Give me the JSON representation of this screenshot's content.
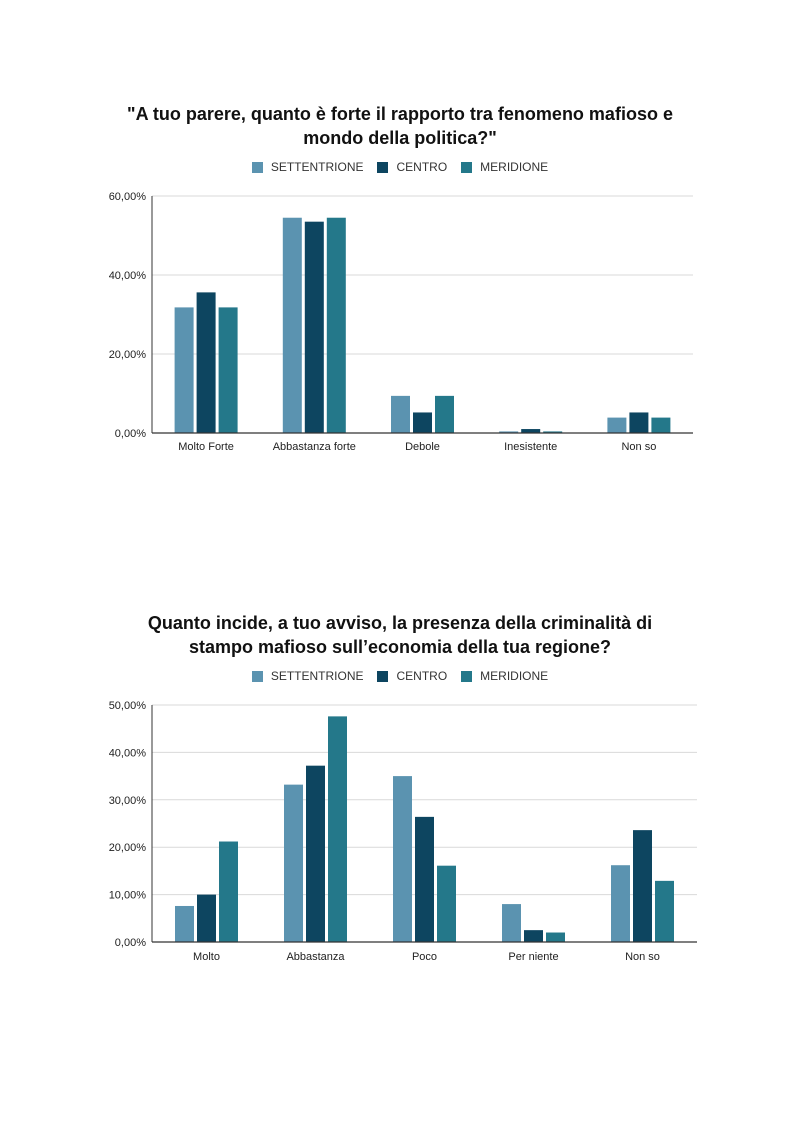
{
  "colors": {
    "SETTENTRIONE": "#5b93b0",
    "CENTRO": "#0d4560",
    "MERIDIONE": "#24788a",
    "grid": "#d9d9d9",
    "axis": "#333333"
  },
  "chart_data": [
    {
      "type": "bar",
      "title_line1": "\"A tuo parere, quanto è forte il rapporto tra fenomeno mafioso e",
      "title_line2": "mondo della politica?\"",
      "legend": [
        "SETTENTRIONE",
        "CENTRO",
        "MERIDIONE"
      ],
      "legend_position": "top",
      "grid": true,
      "categories": [
        "Molto Forte",
        "Abbastanza forte",
        "Debole",
        "Inesistente",
        "Non so"
      ],
      "series": [
        {
          "name": "SETTENTRIONE",
          "values": [
            31.8,
            54.5,
            9.4,
            0.4,
            3.9
          ]
        },
        {
          "name": "CENTRO",
          "values": [
            35.6,
            53.5,
            5.2,
            1.0,
            5.2
          ]
        },
        {
          "name": "MERIDIONE",
          "values": [
            31.8,
            54.5,
            9.4,
            0.4,
            3.9
          ]
        }
      ],
      "ylim": [
        0,
        60
      ],
      "yticks": [
        0,
        20,
        40,
        60
      ],
      "ytick_labels": [
        "0,00%",
        "20,00%",
        "40,00%",
        "60,00%"
      ]
    },
    {
      "type": "bar",
      "title_line1": "Quanto incide, a tuo avviso, la presenza della criminalità di",
      "title_line2": "stampo mafioso sull’economia della tua regione?",
      "legend": [
        "SETTENTRIONE",
        "CENTRO",
        "MERIDIONE"
      ],
      "legend_position": "top",
      "grid": true,
      "categories": [
        "Molto",
        "Abbastanza",
        "Poco",
        "Per niente",
        "Non so"
      ],
      "series": [
        {
          "name": "SETTENTRIONE",
          "values": [
            7.6,
            33.2,
            35.0,
            8.0,
            16.2
          ]
        },
        {
          "name": "CENTRO",
          "values": [
            10.0,
            37.2,
            26.4,
            2.5,
            23.6
          ]
        },
        {
          "name": "MERIDIONE",
          "values": [
            21.2,
            47.6,
            16.1,
            2.0,
            12.9
          ]
        }
      ],
      "ylim": [
        0,
        50
      ],
      "yticks": [
        0,
        10,
        20,
        30,
        40,
        50
      ],
      "ytick_labels": [
        "0,00%",
        "10,00%",
        "20,00%",
        "30,00%",
        "40,00%",
        "50,00%"
      ]
    }
  ]
}
